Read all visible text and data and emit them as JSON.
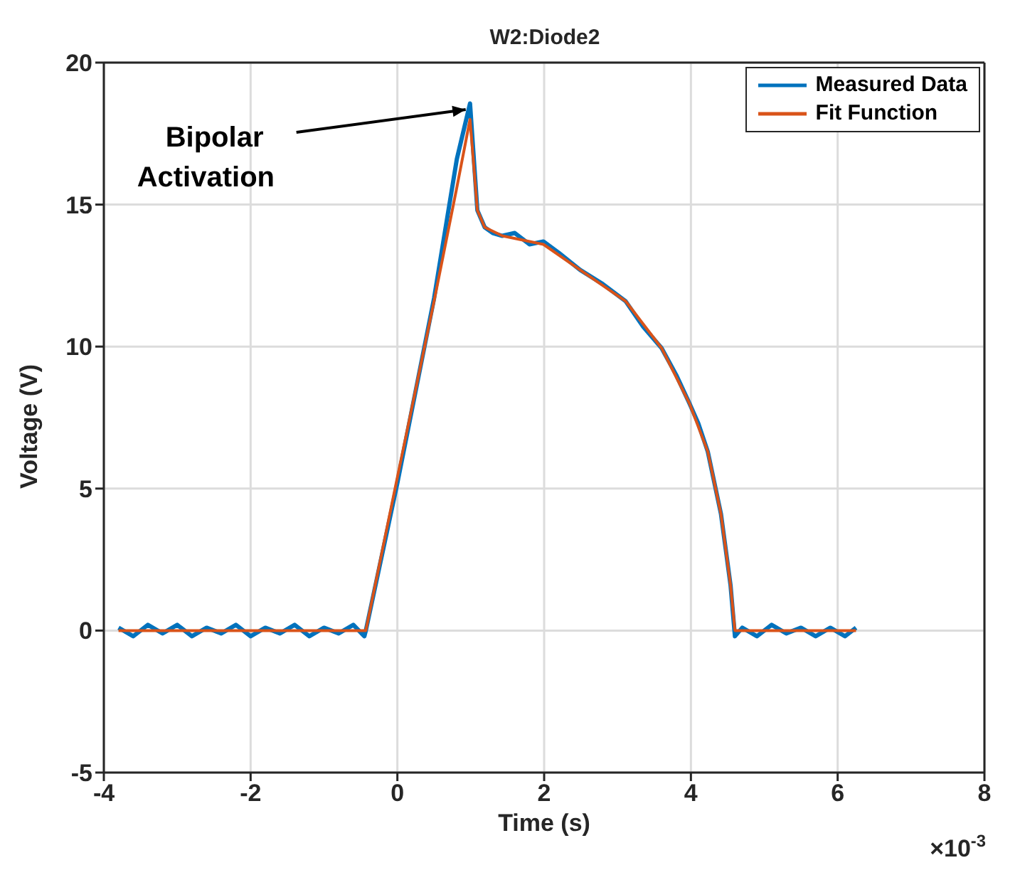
{
  "chart_data": {
    "type": "line",
    "title": "W2:Diode2",
    "xlabel": "Time (s)",
    "ylabel": "Voltage (V)",
    "xlim": [
      -4,
      8
    ],
    "xticks": [
      -4,
      -2,
      0,
      2,
      4,
      6,
      8
    ],
    "ylim": [
      -5,
      20
    ],
    "yticks": [
      -5,
      0,
      5,
      10,
      15,
      20
    ],
    "grid": true,
    "legend": "top right",
    "line_style": "solid",
    "marker": "none",
    "annotations": [
      {
        "text": "Bipolar Activation",
        "x": 1.0,
        "y": 18.5
      },
      "×10$^{-3}$"
    ],
    "series": [
      {
        "name": "Measured Data",
        "color": "#0072bd",
        "x": [
          -3.8,
          -3.6,
          -3.4,
          -3.2,
          -3.0,
          -2.8,
          -2.6,
          -2.4,
          -2.2,
          -2.0,
          -1.8,
          -1.6,
          -1.4,
          -1.2,
          -1.0,
          -0.8,
          -0.6,
          -0.45,
          -0.43,
          0.0,
          0.5,
          0.81,
          0.99,
          1.09,
          1.19,
          1.3,
          1.43,
          1.6,
          1.8,
          1.99,
          2.2,
          2.49,
          2.8,
          3.11,
          3.35,
          3.6,
          3.8,
          3.98,
          4.1,
          4.23,
          4.41,
          4.54,
          4.6,
          4.7,
          4.9,
          5.1,
          5.3,
          5.5,
          5.7,
          5.9,
          6.1,
          6.25
        ],
        "values": [
          0.1,
          -0.2,
          0.2,
          -0.1,
          0.2,
          -0.2,
          0.1,
          -0.1,
          0.2,
          -0.2,
          0.1,
          -0.1,
          0.2,
          -0.2,
          0.1,
          -0.1,
          0.2,
          -0.2,
          0,
          5.2,
          11.7,
          16.6,
          18.56,
          14.8,
          14.2,
          14.0,
          13.9,
          14.0,
          13.6,
          13.7,
          13.3,
          12.7,
          12.2,
          11.6,
          10.7,
          9.95,
          9.0,
          8.0,
          7.3,
          6.3,
          4.1,
          1.6,
          -0.2,
          0.1,
          -0.2,
          0.2,
          -0.1,
          0.1,
          -0.2,
          0.1,
          -0.2,
          0.1
        ]
      },
      {
        "name": "Fit Function",
        "color": "#d95319",
        "x": [
          -3.8,
          -0.43,
          0.0,
          0.5,
          0.81,
          0.99,
          1.09,
          1.19,
          1.43,
          1.99,
          2.49,
          3.11,
          3.6,
          3.98,
          4.23,
          4.41,
          4.54,
          4.6,
          6.25
        ],
        "values": [
          0,
          0,
          5.4,
          11.6,
          15.6,
          18.0,
          14.8,
          14.2,
          13.9,
          13.6,
          12.7,
          11.6,
          9.95,
          8.0,
          6.3,
          4.1,
          1.6,
          0,
          0
        ]
      }
    ]
  }
}
